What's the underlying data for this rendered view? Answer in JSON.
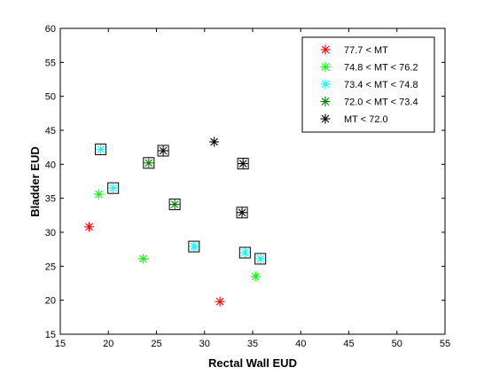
{
  "chart_data": {
    "type": "scatter",
    "title": "",
    "xlabel": "Rectal Wall EUD",
    "ylabel": "Bladder EUD",
    "xlim": [
      15,
      55
    ],
    "ylim": [
      15,
      60
    ],
    "xticks": [
      15,
      20,
      25,
      30,
      35,
      40,
      45,
      50,
      55
    ],
    "yticks": [
      15,
      20,
      25,
      30,
      35,
      40,
      45,
      50,
      55,
      60
    ],
    "grid": false,
    "legend_position": "top-right",
    "series": [
      {
        "name": "77.7 < MT",
        "color": "#ff0000",
        "marker": "asterisk",
        "points": [
          {
            "x": 18.0,
            "y": 30.8,
            "boxed": false
          },
          {
            "x": 31.6,
            "y": 19.8,
            "boxed": false
          }
        ]
      },
      {
        "name": "74.8 < MT < 76.2",
        "color": "#00ff00",
        "marker": "asterisk",
        "points": [
          {
            "x": 19.0,
            "y": 35.6,
            "boxed": false
          },
          {
            "x": 23.6,
            "y": 26.1,
            "boxed": false
          },
          {
            "x": 35.3,
            "y": 23.5,
            "boxed": false
          }
        ]
      },
      {
        "name": "73.4 < MT < 74.8",
        "color": "#00ffff",
        "marker": "asterisk",
        "points": [
          {
            "x": 19.2,
            "y": 42.2,
            "boxed": true
          },
          {
            "x": 20.5,
            "y": 36.5,
            "boxed": true
          },
          {
            "x": 28.9,
            "y": 27.9,
            "boxed": true
          },
          {
            "x": 34.2,
            "y": 27.0,
            "boxed": true
          },
          {
            "x": 35.8,
            "y": 26.1,
            "boxed": true
          }
        ]
      },
      {
        "name": "72.0 < MT < 73.4",
        "color": "#007f00",
        "marker": "asterisk",
        "points": [
          {
            "x": 24.2,
            "y": 40.2,
            "boxed": true
          },
          {
            "x": 26.9,
            "y": 34.1,
            "boxed": true
          }
        ]
      },
      {
        "name": "MT < 72.0",
        "color": "#000000",
        "marker": "asterisk",
        "points": [
          {
            "x": 25.7,
            "y": 42.0,
            "boxed": true
          },
          {
            "x": 31.0,
            "y": 43.3,
            "boxed": false
          },
          {
            "x": 34.0,
            "y": 40.1,
            "boxed": true
          },
          {
            "x": 33.9,
            "y": 32.9,
            "boxed": true
          }
        ]
      }
    ]
  }
}
